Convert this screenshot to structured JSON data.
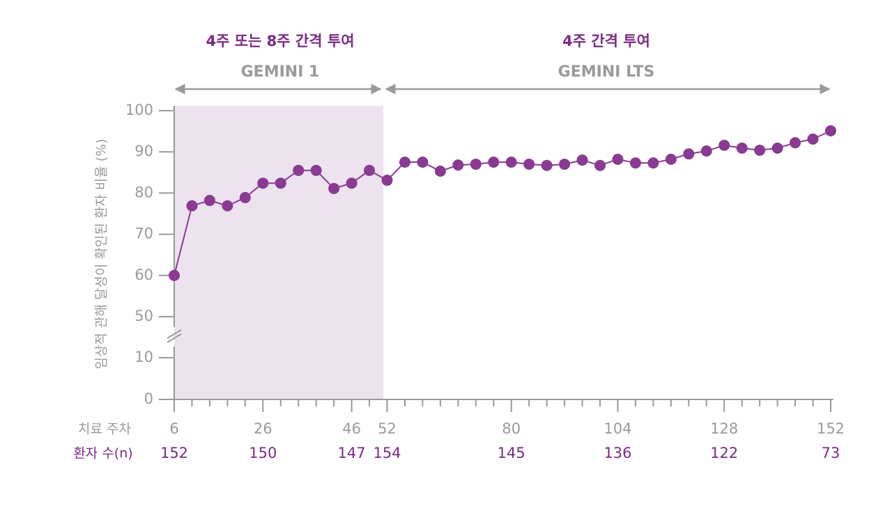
{
  "chart_data": {
    "type": "line",
    "periods": [
      {
        "label": "4주 또는 8주 간격 투여",
        "study": "GEMINI 1"
      },
      {
        "label": "4주 간격 투여",
        "study": "GEMINI LTS"
      }
    ],
    "ylabel": "임상적 관해 달성이 확인된 환자 비율 (%)",
    "xlabel": "치료 주차",
    "categories": [
      "6",
      null,
      null,
      null,
      null,
      "26",
      null,
      null,
      null,
      null,
      "46",
      null,
      "52",
      null,
      null,
      null,
      null,
      null,
      null,
      "80",
      null,
      null,
      null,
      null,
      null,
      "104",
      null,
      null,
      null,
      null,
      null,
      "128",
      null,
      null,
      null,
      null,
      null,
      "152"
    ],
    "patients": {
      "label": "환자 수(n)",
      "values": [
        152,
        null,
        null,
        null,
        null,
        150,
        null,
        null,
        null,
        null,
        147,
        null,
        154,
        null,
        null,
        null,
        null,
        null,
        null,
        145,
        null,
        null,
        null,
        null,
        null,
        136,
        null,
        null,
        null,
        null,
        null,
        122,
        null,
        null,
        null,
        null,
        null,
        73
      ]
    },
    "color": "#8a3a92",
    "values": [
      60,
      76.9,
      78.2,
      76.9,
      78.9,
      82.4,
      82.4,
      85.5,
      85.5,
      81.1,
      82.4,
      85.5,
      83.1,
      87.5,
      87.5,
      85.3,
      86.8,
      87.0,
      87.5,
      87.5,
      87.0,
      86.7,
      87.0,
      88.0,
      86.7,
      88.2,
      87.3,
      87.3,
      88.2,
      89.5,
      90.2,
      91.6,
      90.9,
      90.4,
      90.9,
      92.2,
      93.1,
      95.1
    ],
    "ylim": [
      0,
      100
    ],
    "y_break": [
      10,
      50
    ],
    "yticks": [
      0,
      10,
      50,
      60,
      70,
      80,
      90,
      100
    ]
  }
}
